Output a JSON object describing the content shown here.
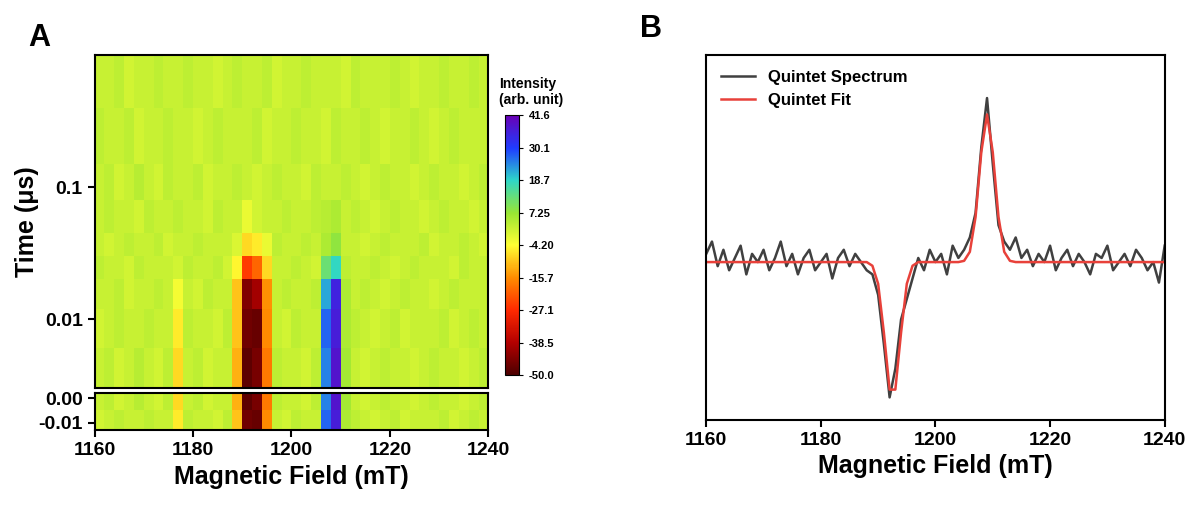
{
  "chart_data": [
    {
      "type": "heatmap",
      "title": "A",
      "y_label": "Time (μs)",
      "log": "y",
      "tick_labels": "y",
      "xlim": [
        1160,
        1240
      ],
      "ylim": [
        0.003,
        1.0
      ],
      "yticks": [
        0.01,
        0.1
      ],
      "colorbar_label": "Intensity\n(arb. unit)",
      "colorbar_lim": [
        -50,
        41.6
      ],
      "colorbar_ticks": [
        41.6,
        30.1,
        18.7,
        7.25,
        {
          "value": -4.2,
          "label": "-4.20"
        },
        -15.7,
        -27.1,
        -38.5,
        {
          "value": -50,
          "label": "-50.0"
        }
      ],
      "x_edges": [
        1160,
        1162,
        1164,
        1166,
        1168,
        1170,
        1172,
        1174,
        1176,
        1178,
        1180,
        1182,
        1184,
        1186,
        1188,
        1190,
        1192,
        1194,
        1196,
        1198,
        1200,
        1202,
        1204,
        1206,
        1208,
        1210,
        1212,
        1214,
        1216,
        1218,
        1220,
        1222,
        1224,
        1226,
        1228,
        1230,
        1232,
        1234,
        1236,
        1238,
        1240
      ],
      "y_edges": [
        0.003,
        0.006,
        0.012,
        0.02,
        0.03,
        0.045,
        0.08,
        0.15,
        0.4,
        1.0
      ],
      "cells": [
        [
          2,
          3,
          1,
          2,
          4,
          2,
          1,
          3,
          -8,
          2,
          3,
          1,
          2,
          2,
          -12,
          -48,
          -45,
          -18,
          3,
          2,
          2,
          1,
          3,
          25,
          38,
          6,
          2,
          1,
          2,
          3,
          2,
          2,
          1,
          2,
          3,
          2,
          2,
          1,
          2,
          3
        ],
        [
          1,
          2,
          3,
          2,
          2,
          3,
          2,
          2,
          -6,
          3,
          2,
          2,
          1,
          3,
          -10,
          -46,
          -47,
          -16,
          2,
          1,
          3,
          2,
          2,
          27,
          36,
          5,
          3,
          2,
          1,
          2,
          3,
          1,
          2,
          2,
          2,
          3,
          1,
          2,
          3,
          2
        ],
        [
          2,
          2,
          3,
          1,
          2,
          2,
          3,
          2,
          -3,
          2,
          1,
          3,
          2,
          2,
          -10,
          -44,
          -40,
          -15,
          2,
          3,
          2,
          2,
          3,
          22,
          35,
          5,
          2,
          3,
          2,
          1,
          2,
          3,
          2,
          2,
          1,
          2,
          3,
          2,
          2,
          2
        ],
        [
          3,
          2,
          2,
          1,
          3,
          2,
          2,
          2,
          1,
          3,
          2,
          2,
          3,
          1,
          -5,
          -25,
          -20,
          -8,
          2,
          2,
          3,
          2,
          1,
          12,
          18,
          3,
          2,
          2,
          3,
          2,
          1,
          2,
          3,
          2,
          2,
          2,
          1,
          3,
          2,
          2
        ],
        [
          2,
          1,
          2,
          3,
          2,
          2,
          3,
          1,
          2,
          2,
          3,
          2,
          2,
          2,
          0,
          -8,
          -6,
          -2,
          3,
          2,
          2,
          3,
          2,
          5,
          8,
          2,
          2,
          1,
          2,
          3,
          2,
          2,
          2,
          3,
          1,
          2,
          2,
          3,
          2,
          1
        ],
        [
          2,
          3,
          2,
          2,
          1,
          3,
          2,
          2,
          3,
          2,
          2,
          1,
          3,
          2,
          2,
          -2,
          1,
          2,
          2,
          3,
          2,
          2,
          3,
          4,
          5,
          2,
          3,
          2,
          1,
          2,
          3,
          2,
          2,
          1,
          2,
          3,
          2,
          2,
          1,
          2
        ],
        [
          2,
          3,
          1,
          2,
          4,
          2,
          1,
          3,
          2,
          2,
          3,
          1,
          2,
          2,
          3,
          2,
          1,
          2,
          3,
          2,
          2,
          1,
          3,
          2,
          2,
          3,
          2,
          1,
          2,
          3,
          2,
          2,
          1,
          2,
          3,
          2,
          2,
          1,
          2,
          3
        ],
        [
          3,
          2,
          2,
          3,
          1,
          2,
          2,
          3,
          2,
          2,
          1,
          2,
          3,
          2,
          2,
          2,
          3,
          1,
          2,
          2,
          3,
          2,
          2,
          1,
          3,
          2,
          2,
          3,
          2,
          1,
          2,
          2,
          3,
          2,
          1,
          2,
          3,
          2,
          2,
          2
        ],
        [
          2,
          2,
          3,
          1,
          2,
          2,
          3,
          2,
          2,
          3,
          2,
          2,
          1,
          2,
          3,
          2,
          2,
          3,
          1,
          2,
          2,
          3,
          2,
          2,
          2,
          1,
          3,
          2,
          2,
          2,
          3,
          2,
          1,
          2,
          2,
          3,
          2,
          2,
          3,
          2
        ]
      ]
    },
    {
      "type": "heatmap",
      "x_label": "Magnetic Field (mT)",
      "xlim": [
        1160,
        1240
      ],
      "xticks": [
        1160,
        1180,
        1200,
        1220,
        1240
      ],
      "ylim": [
        -0.013,
        0.002
      ],
      "yticks": [
        -0.01,
        {
          "value": 0,
          "label": "0.00"
        }
      ],
      "x_edges": [
        1160,
        1162,
        1164,
        1166,
        1168,
        1170,
        1172,
        1174,
        1176,
        1178,
        1180,
        1182,
        1184,
        1186,
        1188,
        1190,
        1192,
        1194,
        1196,
        1198,
        1200,
        1202,
        1204,
        1206,
        1208,
        1210,
        1212,
        1214,
        1216,
        1218,
        1220,
        1222,
        1224,
        1226,
        1228,
        1230,
        1232,
        1234,
        1236,
        1238,
        1240
      ],
      "y_edges": [
        -0.013,
        -0.005,
        0.002
      ],
      "cells": [
        [
          1,
          2,
          3,
          2,
          2,
          3,
          2,
          2,
          -6,
          3,
          2,
          2,
          1,
          3,
          -10,
          -46,
          -47,
          -16,
          2,
          1,
          3,
          2,
          2,
          27,
          36,
          5,
          3,
          2,
          1,
          2,
          3,
          1,
          2,
          2,
          2,
          3,
          1,
          2,
          3,
          2
        ],
        [
          2,
          3,
          1,
          2,
          4,
          2,
          1,
          3,
          -8,
          2,
          3,
          1,
          2,
          2,
          -12,
          -48,
          -45,
          -18,
          3,
          2,
          2,
          1,
          3,
          25,
          38,
          6,
          2,
          1,
          2,
          3,
          2,
          2,
          1,
          2,
          3,
          2,
          2,
          1,
          2,
          3
        ]
      ]
    },
    {
      "type": "line",
      "title": "B",
      "x_label": "Magnetic Field (mT)",
      "tick_labels": "x",
      "legend": "upper left",
      "xlim": [
        1160,
        1240
      ],
      "xticks": [
        1160,
        1180,
        1200,
        1220,
        1240
      ],
      "ylim": [
        -38.5,
        50.5
      ],
      "x": [
        1160,
        1161,
        1162,
        1163,
        1164,
        1165,
        1166,
        1167,
        1168,
        1169,
        1170,
        1171,
        1172,
        1173,
        1174,
        1175,
        1176,
        1177,
        1178,
        1179,
        1180,
        1181,
        1182,
        1183,
        1184,
        1185,
        1186,
        1187,
        1188,
        1189,
        1190,
        1191,
        1192,
        1193,
        1194,
        1195,
        1196,
        1197,
        1198,
        1199,
        1200,
        1201,
        1202,
        1203,
        1204,
        1205,
        1206,
        1207,
        1208,
        1209,
        1210,
        1211,
        1212,
        1213,
        1214,
        1215,
        1216,
        1217,
        1218,
        1219,
        1220,
        1221,
        1222,
        1223,
        1224,
        1225,
        1226,
        1227,
        1228,
        1229,
        1230,
        1231,
        1232,
        1233,
        1234,
        1235,
        1236,
        1237,
        1238,
        1239,
        1240
      ],
      "series": [
        {
          "name": "Quintet Spectrum",
          "color": "#404040",
          "values": [
            2,
            5,
            -1,
            3,
            -2,
            1,
            4,
            -3,
            2,
            0,
            3,
            -2,
            1,
            5,
            -1,
            2,
            -3,
            1,
            3,
            -2,
            0,
            2,
            -4,
            1,
            3,
            -1,
            2,
            0,
            -2,
            -3,
            -8,
            -20,
            -33,
            -26,
            -14,
            -9,
            -4,
            1,
            -2,
            3,
            0,
            2,
            -3,
            4,
            1,
            3,
            6,
            12,
            28,
            40,
            24,
            9,
            5,
            3,
            6,
            1,
            3,
            -1,
            2,
            0,
            4,
            -2,
            1,
            3,
            -1,
            2,
            0,
            -3,
            2,
            1,
            4,
            -2,
            0,
            2,
            -1,
            3,
            1,
            -2,
            0,
            -5,
            4
          ]
        },
        {
          "name": "Quintet Fit",
          "color": "#e8413a",
          "values": [
            0,
            0,
            0,
            0,
            0,
            0,
            0,
            0,
            0,
            0,
            0,
            0,
            0,
            0,
            0,
            0,
            0,
            0,
            0,
            0,
            0,
            0,
            0,
            0,
            0,
            0,
            0,
            0,
            0,
            -0.9,
            -5.3,
            -17.2,
            -31.1,
            -31.1,
            -17.2,
            -5.3,
            -0.9,
            0,
            0,
            0,
            0,
            0,
            0,
            0,
            0,
            0.3,
            2.5,
            11,
            26.8,
            36,
            26.8,
            11,
            2.5,
            0.3,
            0,
            0,
            0,
            0,
            0,
            0,
            0,
            0,
            0,
            0,
            0,
            0,
            0,
            0,
            0,
            0,
            0,
            0,
            0,
            0,
            0,
            0,
            0,
            0,
            0,
            0,
            0
          ]
        }
      ]
    }
  ]
}
